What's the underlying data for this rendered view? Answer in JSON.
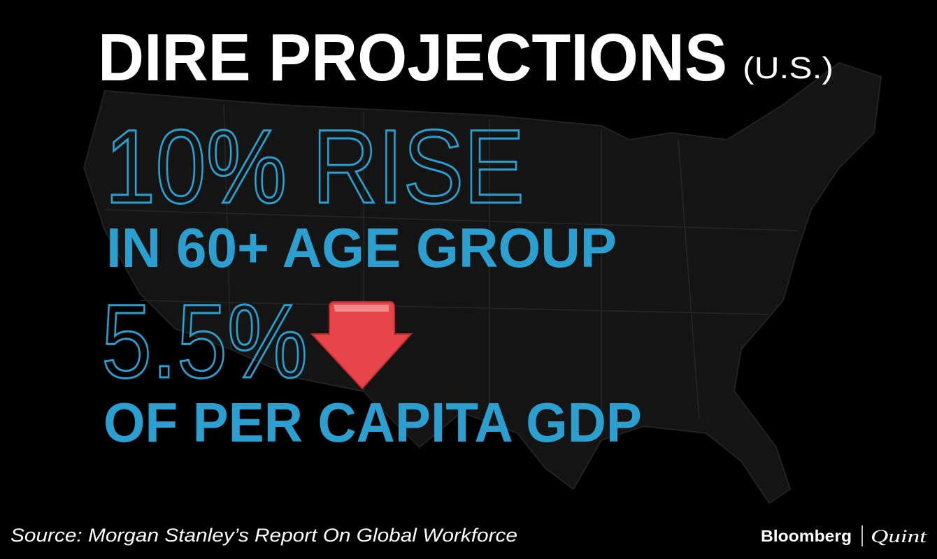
{
  "header": {
    "title": "DIRE PROJECTIONS",
    "region": "(U.S.)"
  },
  "stats": [
    {
      "headline": "10% RISE",
      "detail": "IN 60+ AGE GROUP"
    },
    {
      "headline": "5.5%",
      "detail": "OF PER CAPITA GDP"
    }
  ],
  "footer": {
    "source": "Source: Morgan Stanley’s Report On Global Workforce",
    "brand": "Bloomberg",
    "brand2": "Quint"
  }
}
